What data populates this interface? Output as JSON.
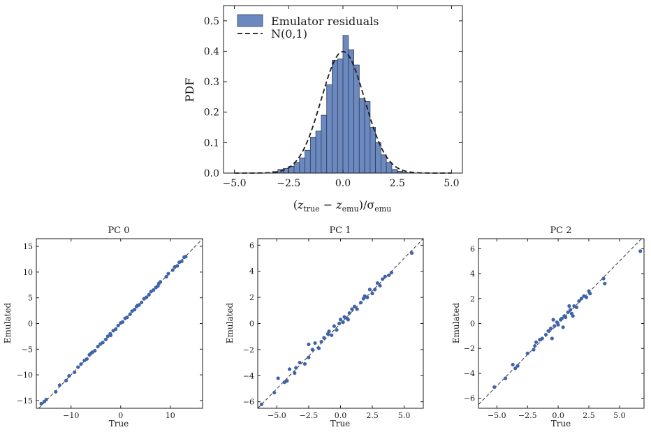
{
  "colors": {
    "bar_fill": "#6b88bf",
    "bar_edge": "#2f3f5c",
    "point": "#3f63a8",
    "ref_line": "#444444",
    "axis": "#1a1a1a"
  },
  "chart_data": [
    {
      "type": "bar",
      "title": "",
      "xlabel": "(z_true − z_emu)/σ_emu",
      "xlabel_parts": {
        "open": "(",
        "z1": "z",
        "sub1": "true",
        "minus": " − ",
        "z2": "z",
        "sub2": "emu",
        "close": ")/σ",
        "sub3": "emu"
      },
      "ylabel": "PDF",
      "xlim": [
        -5.5,
        5.5
      ],
      "ylim": [
        0,
        0.55
      ],
      "xticks": [
        -5.0,
        -2.5,
        0.0,
        2.5,
        5.0
      ],
      "xtick_labels": [
        "−5.0",
        "−2.5",
        "0.0",
        "2.5",
        "5.0"
      ],
      "yticks": [
        0.0,
        0.1,
        0.2,
        0.3,
        0.4,
        0.5
      ],
      "ytick_labels": [
        "0.0",
        "0.1",
        "0.2",
        "0.3",
        "0.4",
        "0.5"
      ],
      "legend_position": "upper-left",
      "legend": [
        "Emulator residuals",
        "N(0,1)"
      ],
      "bin_width": 0.25,
      "bin_starts": [
        -3.25,
        -3.0,
        -2.75,
        -2.5,
        -2.25,
        -2.0,
        -1.75,
        -1.5,
        -1.25,
        -1.0,
        -0.75,
        -0.5,
        -0.25,
        0.0,
        0.25,
        0.5,
        0.75,
        1.0,
        1.25,
        1.5,
        1.75,
        2.0,
        2.25,
        2.5,
        2.75
      ],
      "values": [
        0.005,
        0.012,
        0.015,
        0.022,
        0.035,
        0.05,
        0.075,
        0.118,
        0.138,
        0.19,
        0.29,
        0.37,
        0.375,
        0.452,
        0.405,
        0.355,
        0.245,
        0.235,
        0.15,
        0.1,
        0.06,
        0.035,
        0.012,
        0.006,
        0.002
      ],
      "reference_curve": "N(0,1)"
    },
    {
      "type": "scatter",
      "title": "PC 0",
      "xlabel": "True",
      "ylabel": "Emulated",
      "xlim": [
        -17,
        16.5
      ],
      "ylim": [
        -16.5,
        16.5
      ],
      "xticks": [
        -10,
        0,
        10
      ],
      "xtick_labels": [
        "−10",
        "0",
        "10"
      ],
      "yticks": [
        -15,
        -10,
        -5,
        0,
        5,
        10,
        15
      ],
      "ytick_labels": [
        "−15",
        "−10",
        "−5",
        "0",
        "5",
        "10",
        "15"
      ],
      "points": [
        [
          -16.0,
          -15.6
        ],
        [
          -15.4,
          -15.2
        ],
        [
          -15.0,
          -14.8
        ],
        [
          -12.3,
          -12.0
        ],
        [
          -11.0,
          -11.1
        ],
        [
          -10.4,
          -10.2
        ],
        [
          -9.3,
          -9.5
        ],
        [
          -8.6,
          -8.5
        ],
        [
          -8.0,
          -7.9
        ],
        [
          -7.3,
          -7.2
        ],
        [
          -6.8,
          -6.9
        ],
        [
          -6.3,
          -6.1
        ],
        [
          -5.7,
          -5.6
        ],
        [
          -5.2,
          -5.3
        ],
        [
          -4.6,
          -4.5
        ],
        [
          -4.1,
          -4.0
        ],
        [
          -3.6,
          -3.7
        ],
        [
          -3.0,
          -3.1
        ],
        [
          -2.6,
          -2.5
        ],
        [
          -2.1,
          -2.0
        ],
        [
          -1.5,
          -1.4
        ],
        [
          -1.0,
          -1.1
        ],
        [
          -0.5,
          -0.4
        ],
        [
          0.0,
          0.1
        ],
        [
          0.4,
          0.3
        ],
        [
          0.9,
          1.0
        ],
        [
          1.3,
          1.2
        ],
        [
          1.9,
          1.8
        ],
        [
          2.3,
          2.4
        ],
        [
          2.8,
          2.7
        ],
        [
          3.2,
          3.3
        ],
        [
          3.7,
          3.6
        ],
        [
          4.2,
          4.1
        ],
        [
          4.7,
          4.8
        ],
        [
          5.2,
          5.1
        ],
        [
          5.7,
          5.6
        ],
        [
          6.1,
          6.2
        ],
        [
          6.6,
          6.5
        ],
        [
          7.1,
          7.0
        ],
        [
          7.7,
          7.8
        ],
        [
          8.0,
          8.1
        ],
        [
          9.2,
          9.1
        ],
        [
          9.6,
          9.7
        ],
        [
          10.5,
          10.4
        ],
        [
          10.9,
          11.0
        ],
        [
          11.4,
          11.2
        ],
        [
          11.8,
          11.9
        ],
        [
          12.3,
          12.1
        ],
        [
          12.8,
          12.9
        ],
        [
          13.1,
          13.0
        ],
        [
          -13.1,
          -13.3
        ],
        [
          -6.0,
          -5.8
        ],
        [
          -2.0,
          -2.3
        ],
        [
          3.4,
          3.5
        ],
        [
          7.5,
          7.3
        ]
      ]
    },
    {
      "type": "scatter",
      "title": "PC 1",
      "xlabel": "True",
      "ylabel": "Emulated",
      "xlim": [
        -6.5,
        6.5
      ],
      "ylim": [
        -6.5,
        6.5
      ],
      "xticks": [
        -5.0,
        -2.5,
        0.0,
        2.5,
        5.0
      ],
      "xtick_labels": [
        "−5.0",
        "−2.5",
        "0.0",
        "2.5",
        "5.0"
      ],
      "yticks": [
        -6,
        -4,
        -2,
        0,
        2,
        4,
        6
      ],
      "ytick_labels": [
        "−6",
        "−4",
        "−2",
        "0",
        "2",
        "4",
        "6"
      ],
      "points": [
        [
          -6.2,
          -6.2
        ],
        [
          -5.2,
          -5.3
        ],
        [
          -4.9,
          -4.2
        ],
        [
          -4.4,
          -4.5
        ],
        [
          -4.2,
          -4.4
        ],
        [
          -4.0,
          -3.5
        ],
        [
          -3.5,
          -3.4
        ],
        [
          -3.2,
          -3.0
        ],
        [
          -2.8,
          -3.1
        ],
        [
          -2.5,
          -2.6
        ],
        [
          -2.2,
          -2.0
        ],
        [
          -2.5,
          -1.6
        ],
        [
          -2.0,
          -1.5
        ],
        [
          -1.7,
          -1.9
        ],
        [
          -1.3,
          -1.1
        ],
        [
          -1.0,
          -0.8
        ],
        [
          -0.9,
          -0.6
        ],
        [
          -0.5,
          -0.2
        ],
        [
          -0.3,
          -0.5
        ],
        [
          -0.1,
          0.0
        ],
        [
          0.0,
          0.3
        ],
        [
          0.2,
          0.1
        ],
        [
          0.3,
          0.5
        ],
        [
          0.5,
          0.4
        ],
        [
          0.7,
          0.8
        ],
        [
          0.9,
          1.1
        ],
        [
          1.1,
          1.3
        ],
        [
          1.3,
          1.1
        ],
        [
          1.6,
          1.6
        ],
        [
          1.8,
          1.9
        ],
        [
          2.1,
          2.0
        ],
        [
          2.3,
          2.6
        ],
        [
          2.5,
          2.3
        ],
        [
          2.7,
          2.6
        ],
        [
          2.9,
          3.1
        ],
        [
          3.1,
          2.9
        ],
        [
          3.3,
          3.4
        ],
        [
          3.5,
          3.6
        ],
        [
          3.8,
          3.7
        ],
        [
          4.0,
          3.9
        ],
        [
          5.6,
          5.4
        ],
        [
          -1.5,
          -1.4
        ],
        [
          0.6,
          0.3
        ],
        [
          1.9,
          2.1
        ],
        [
          -3.6,
          -3.8
        ],
        [
          -0.7,
          -0.9
        ]
      ]
    },
    {
      "type": "scatter",
      "title": "PC 2",
      "xlabel": "True",
      "ylabel": "Emulated",
      "xlim": [
        -6.5,
        7.0
      ],
      "ylim": [
        -6.8,
        6.8
      ],
      "xticks": [
        -5.0,
        -2.5,
        0.0,
        2.5,
        5.0
      ],
      "xtick_labels": [
        "−5.0",
        "−2.5",
        "0.0",
        "2.5",
        "5.0"
      ],
      "yticks": [
        -6,
        -4,
        -2,
        0,
        2,
        4,
        6
      ],
      "ytick_labels": [
        "−6",
        "−4",
        "−2",
        "0",
        "2",
        "4",
        "6"
      ],
      "points": [
        [
          -5.2,
          -5.1
        ],
        [
          -4.3,
          -4.4
        ],
        [
          -3.7,
          -3.3
        ],
        [
          -3.5,
          -3.6
        ],
        [
          -3.3,
          -3.4
        ],
        [
          -2.5,
          -2.4
        ],
        [
          -2.0,
          -2.1
        ],
        [
          -1.8,
          -1.5
        ],
        [
          -1.5,
          -1.3
        ],
        [
          -1.3,
          -1.2
        ],
        [
          -1.0,
          -0.9
        ],
        [
          -0.8,
          -0.6
        ],
        [
          -0.6,
          -0.4
        ],
        [
          -0.5,
          -1.2
        ],
        [
          -0.3,
          -0.2
        ],
        [
          -0.1,
          0.1
        ],
        [
          0.0,
          -0.1
        ],
        [
          0.2,
          0.3
        ],
        [
          0.3,
          0.4
        ],
        [
          0.5,
          0.6
        ],
        [
          0.6,
          0.5
        ],
        [
          0.8,
          0.9
        ],
        [
          1.0,
          1.1
        ],
        [
          1.1,
          0.8
        ],
        [
          1.3,
          1.4
        ],
        [
          1.5,
          1.3
        ],
        [
          1.7,
          1.8
        ],
        [
          1.9,
          2.0
        ],
        [
          2.1,
          2.2
        ],
        [
          2.3,
          2.1
        ],
        [
          2.5,
          2.6
        ],
        [
          2.6,
          2.4
        ],
        [
          3.7,
          3.6
        ],
        [
          3.8,
          3.2
        ],
        [
          6.7,
          5.8
        ],
        [
          -0.4,
          0.3
        ],
        [
          0.9,
          1.4
        ],
        [
          1.2,
          0.6
        ],
        [
          -1.9,
          -1.8
        ],
        [
          0.4,
          -0.3
        ]
      ]
    }
  ]
}
